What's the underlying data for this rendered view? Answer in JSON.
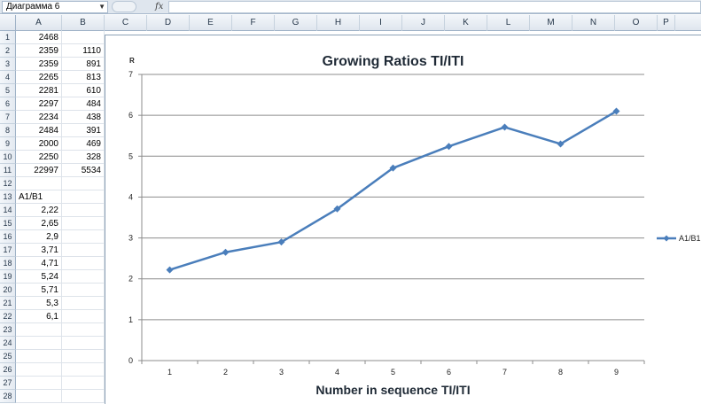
{
  "formula_bar": {
    "name_box": "Диаграмма 6",
    "fx_label": "fx",
    "formula": ""
  },
  "columns": [
    "A",
    "B",
    "C",
    "D",
    "E",
    "F",
    "G",
    "H",
    "I",
    "J",
    "K",
    "L",
    "M",
    "N",
    "O",
    "P"
  ],
  "rows": [
    {
      "n": "1",
      "a": "2468",
      "b": ""
    },
    {
      "n": "2",
      "a": "2359",
      "b": "1110"
    },
    {
      "n": "3",
      "a": "2359",
      "b": "891"
    },
    {
      "n": "4",
      "a": "2265",
      "b": "813"
    },
    {
      "n": "5",
      "a": "2281",
      "b": "610"
    },
    {
      "n": "6",
      "a": "2297",
      "b": "484"
    },
    {
      "n": "7",
      "a": "2234",
      "b": "438"
    },
    {
      "n": "8",
      "a": "2484",
      "b": "391"
    },
    {
      "n": "9",
      "a": "2000",
      "b": "469"
    },
    {
      "n": "10",
      "a": "2250",
      "b": "328"
    },
    {
      "n": "11",
      "a": "22997",
      "b": "5534"
    },
    {
      "n": "12",
      "a": "",
      "b": ""
    },
    {
      "n": "13",
      "a": "A1/B1",
      "b": "",
      "a_text": true
    },
    {
      "n": "14",
      "a": "2,22",
      "b": ""
    },
    {
      "n": "15",
      "a": "2,65",
      "b": ""
    },
    {
      "n": "16",
      "a": "2,9",
      "b": ""
    },
    {
      "n": "17",
      "a": "3,71",
      "b": ""
    },
    {
      "n": "18",
      "a": "4,71",
      "b": ""
    },
    {
      "n": "19",
      "a": "5,24",
      "b": ""
    },
    {
      "n": "20",
      "a": "5,71",
      "b": ""
    },
    {
      "n": "21",
      "a": "5,3",
      "b": ""
    },
    {
      "n": "22",
      "a": "6,1",
      "b": ""
    },
    {
      "n": "23",
      "a": "",
      "b": ""
    },
    {
      "n": "24",
      "a": "",
      "b": ""
    },
    {
      "n": "25",
      "a": "",
      "b": ""
    },
    {
      "n": "26",
      "a": "",
      "b": ""
    },
    {
      "n": "27",
      "a": "",
      "b": ""
    },
    {
      "n": "28",
      "a": "",
      "b": ""
    }
  ],
  "chart_data": {
    "type": "line",
    "title": "Growing Ratios TI/ITI",
    "xlabel": "Number in sequence TI/ITI",
    "ylabel": "R",
    "categories": [
      "1",
      "2",
      "3",
      "4",
      "5",
      "6",
      "7",
      "8",
      "9"
    ],
    "series": [
      {
        "name": "A1/B1",
        "values": [
          2.22,
          2.65,
          2.9,
          3.71,
          4.71,
          5.24,
          5.71,
          5.3,
          6.1
        ],
        "color": "#4a7ebb",
        "marker": "diamond"
      }
    ],
    "ylim": [
      0,
      7
    ],
    "yticks": [
      "0",
      "1",
      "2",
      "3",
      "4",
      "5",
      "6",
      "7"
    ],
    "grid": true,
    "legend_position": "right"
  }
}
